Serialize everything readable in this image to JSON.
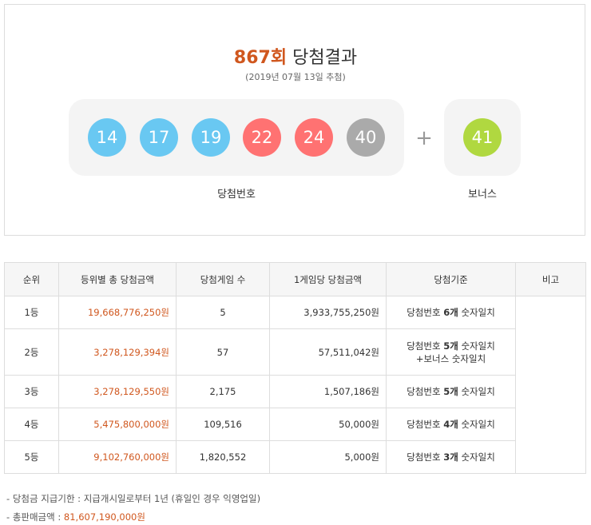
{
  "header": {
    "round": "867회",
    "title": "당첨결과",
    "date": "(2019년 07월 13일 추첨)"
  },
  "balls": [
    {
      "number": 14,
      "color": "#69c8f2"
    },
    {
      "number": 17,
      "color": "#69c8f2"
    },
    {
      "number": 19,
      "color": "#69c8f2"
    },
    {
      "number": 22,
      "color": "#ff7272"
    },
    {
      "number": 24,
      "color": "#ff7272"
    },
    {
      "number": 40,
      "color": "#aaaaaa"
    }
  ],
  "plus": "+",
  "bonus": {
    "number": 41,
    "color": "#b0d840"
  },
  "labels": {
    "winning": "당첨번호",
    "bonus": "보너스"
  },
  "table": {
    "headers": [
      "순위",
      "등위별 총 당첨금액",
      "당첨게임 수",
      "1게임당 당첨금액",
      "당첨기준",
      "비고"
    ],
    "rows": [
      {
        "rank": "1등",
        "total": "19,668,776,250원",
        "games": "5",
        "per_game": "3,933,755,250원",
        "criteria": {
          "pre": "당첨번호",
          "bold": "6개",
          "post": "숫자일치"
        }
      },
      {
        "rank": "2등",
        "total": "3,278,129,394원",
        "games": "57",
        "per_game": "57,511,042원",
        "criteria": {
          "pre": "당첨번호",
          "bold": "5개",
          "post": "숫자일치",
          "extra": "+보너스 숫자일치"
        }
      },
      {
        "rank": "3등",
        "total": "3,278,129,550원",
        "games": "2,175",
        "per_game": "1,507,186원",
        "criteria": {
          "pre": "당첨번호",
          "bold": "5개",
          "post": "숫자일치"
        }
      },
      {
        "rank": "4등",
        "total": "5,475,800,000원",
        "games": "109,516",
        "per_game": "50,000원",
        "criteria": {
          "pre": "당첨번호",
          "bold": "4개",
          "post": "숫자일치"
        }
      },
      {
        "rank": "5등",
        "total": "9,102,760,000원",
        "games": "1,820,552",
        "per_game": "5,000원",
        "criteria": {
          "pre": "당첨번호",
          "bold": "3개",
          "post": "숫자일치"
        }
      }
    ]
  },
  "notes": [
    {
      "label": "당첨금 지급기한 : 지급개시일로부터 1년 (휴일인 경우 익영업일)"
    },
    {
      "label": "총판매금액 :",
      "value": "81,607,190,000원"
    }
  ]
}
